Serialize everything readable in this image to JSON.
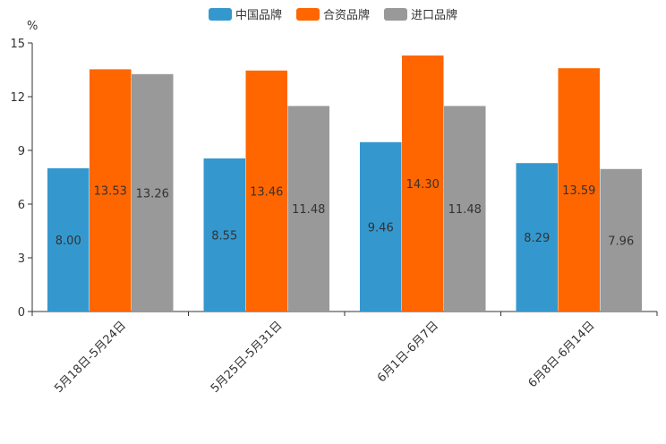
{
  "chart_data": {
    "type": "bar",
    "y_unit": "%",
    "categories": [
      "5月18日-5月24日",
      "5月25日-5月31日",
      "6月1日-6月7日",
      "6月8日-6月14日"
    ],
    "series": [
      {
        "name": "中国品牌",
        "color": "#3498cf",
        "values": [
          8.0,
          8.55,
          9.46,
          8.29
        ]
      },
      {
        "name": "合资品牌",
        "color": "#ff6600",
        "values": [
          13.53,
          13.46,
          14.3,
          13.59
        ]
      },
      {
        "name": "进口品牌",
        "color": "#999999",
        "values": [
          13.26,
          11.48,
          11.48,
          7.96
        ]
      }
    ],
    "ylim": [
      0,
      15
    ],
    "yticks": [
      0,
      3,
      6,
      9,
      12,
      15
    ],
    "legend_position": "top-center"
  }
}
